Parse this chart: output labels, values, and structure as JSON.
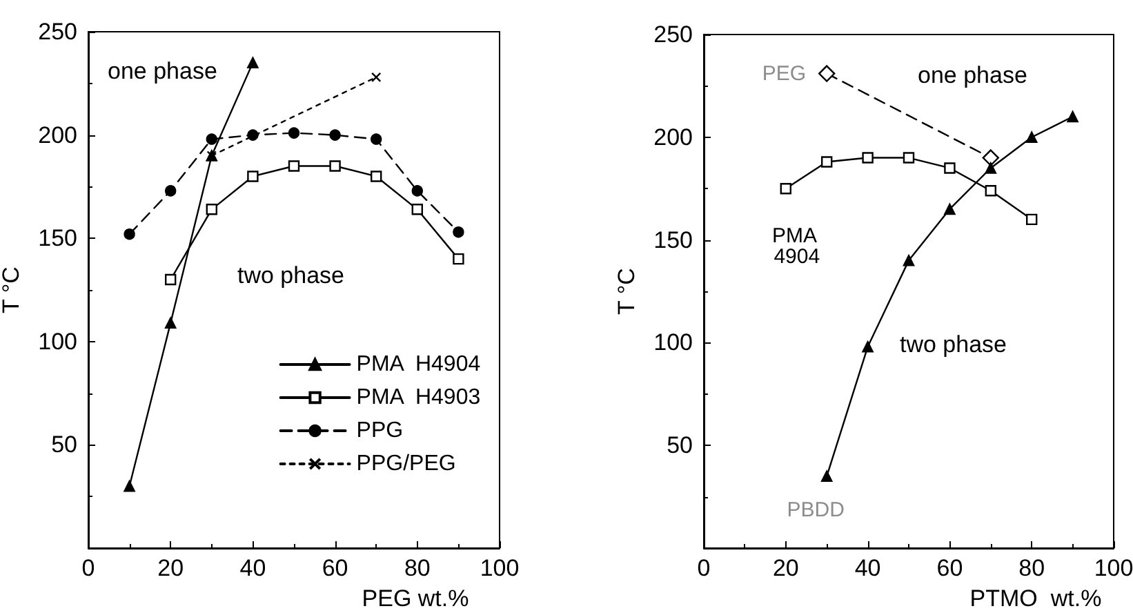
{
  "chart_data": [
    {
      "type": "line",
      "xlabel": "PEG wt.%",
      "ylabel": "T °C",
      "xlim": [
        0,
        100
      ],
      "xticks": [
        0,
        20,
        40,
        60,
        80,
        100
      ],
      "ylim": [
        0,
        250
      ],
      "yticks": [
        50,
        100,
        150,
        200,
        250
      ],
      "grid": false,
      "legend": "bottom right",
      "annotations": [
        "one phase",
        "two phase"
      ],
      "series": [
        {
          "name": "PMA  H4904",
          "color": "#000000",
          "marker": "triangle",
          "line_style": "solid",
          "x": [
            10,
            20,
            30,
            40
          ],
          "values": [
            30,
            109,
            190,
            235
          ]
        },
        {
          "name": "PMA  H4903",
          "color": "#000000",
          "marker": "square",
          "line_style": "solid",
          "x": [
            20,
            30,
            40,
            50,
            60,
            70,
            80,
            90
          ],
          "values": [
            130,
            164,
            180,
            185,
            185,
            180,
            164,
            140
          ]
        },
        {
          "name": "PPG",
          "color": "#000000",
          "marker": "circle",
          "line_style": "dashed",
          "x": [
            10,
            20,
            30,
            40,
            50,
            60,
            70,
            80,
            90
          ],
          "values": [
            152,
            173,
            198,
            200,
            201,
            200,
            198,
            173,
            153
          ]
        },
        {
          "name": "PPG/PEG",
          "color": "#000000",
          "marker": "cross",
          "line_style": "dotted",
          "x": [
            30,
            70
          ],
          "values": [
            190,
            228
          ]
        }
      ]
    },
    {
      "type": "line",
      "xlabel": "PTMO  wt.%",
      "ylabel": "T °C",
      "xlim": [
        0,
        100
      ],
      "xticks": [
        0,
        20,
        40,
        60,
        80,
        100
      ],
      "ylim": [
        0,
        250
      ],
      "yticks": [
        50,
        100,
        150,
        200,
        250
      ],
      "grid": false,
      "legend": false,
      "annotations": [
        "one phase",
        "two phase"
      ],
      "series": [
        {
          "name": "PEG",
          "color": "#000000",
          "marker": "diamond",
          "line_style": "dashed",
          "x": [
            30,
            70
          ],
          "values": [
            231,
            190
          ]
        },
        {
          "name": "PMA 4904",
          "color": "#000000",
          "marker": "square",
          "line_style": "solid",
          "x": [
            20,
            30,
            40,
            50,
            60,
            70,
            80
          ],
          "values": [
            175,
            188,
            190,
            190,
            185,
            174,
            160
          ]
        },
        {
          "name": "PBDD",
          "color": "#000000",
          "marker": "triangle",
          "line_style": "solid",
          "x": [
            30,
            40,
            50,
            60,
            70,
            80,
            90
          ],
          "values": [
            35,
            98,
            140,
            165,
            185,
            200,
            210
          ]
        }
      ]
    }
  ]
}
